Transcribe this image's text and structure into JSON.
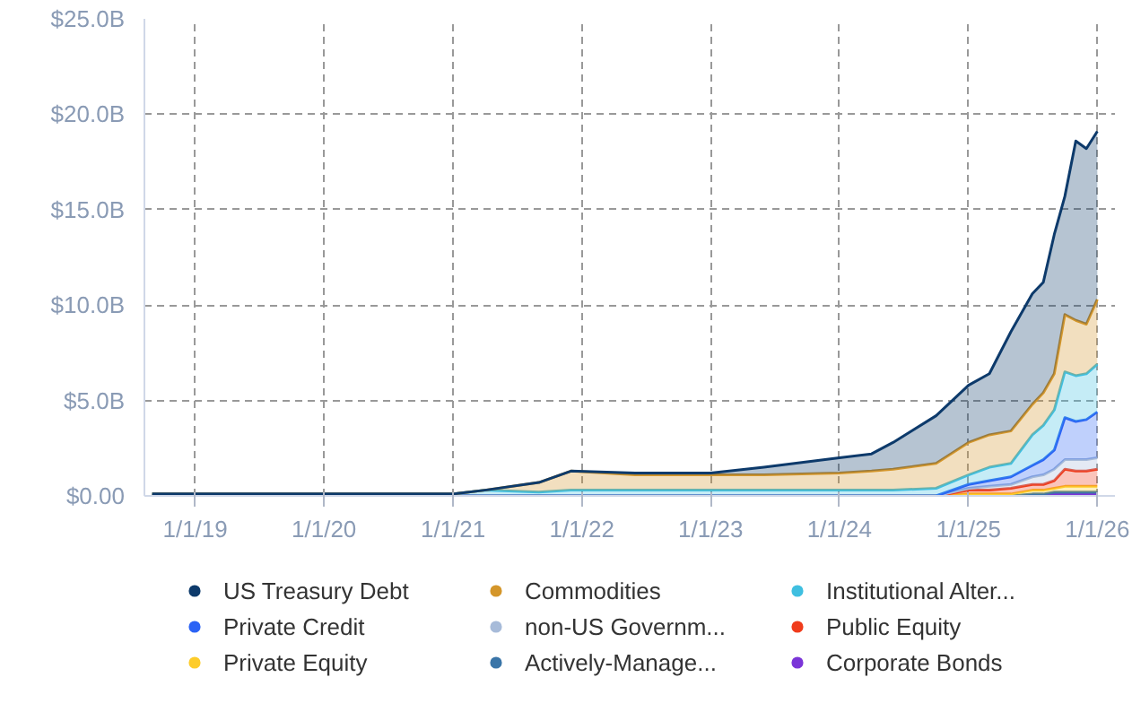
{
  "chart_data": {
    "type": "area",
    "stacked": true,
    "x": [
      "2018-09",
      "2019-06",
      "2020-06",
      "2021-01",
      "2021-04",
      "2021-09",
      "2021-12",
      "2022-06",
      "2023-01",
      "2023-06",
      "2024-01",
      "2024-04",
      "2024-06",
      "2024-10",
      "2025-01",
      "2025-03",
      "2025-05",
      "2025-07",
      "2025-08",
      "2025-09",
      "2025-10",
      "2025-11",
      "2025-12",
      "2026-01"
    ],
    "series": [
      {
        "name": "Corporate Bonds",
        "color": "#7b35d8",
        "values": [
          0,
          0,
          0,
          0,
          0,
          0,
          0,
          0,
          0,
          0,
          0,
          0,
          0,
          0,
          0,
          0,
          0,
          0,
          0,
          0.1,
          0.1,
          0.1,
          0.1,
          0.1
        ]
      },
      {
        "name": "Actively-Manage...",
        "color": "#3a75a8",
        "values": [
          0,
          0,
          0,
          0,
          0,
          0,
          0,
          0,
          0,
          0,
          0,
          0,
          0,
          0,
          0,
          0,
          0,
          0.1,
          0.1,
          0.1,
          0.1,
          0.1,
          0.1,
          0.1
        ]
      },
      {
        "name": "Private Equity",
        "color": "#fdcc2a",
        "values": [
          0,
          0,
          0,
          0,
          0,
          0,
          0,
          0,
          0,
          0,
          0,
          0,
          0,
          0,
          0.1,
          0.1,
          0.1,
          0.2,
          0.2,
          0.2,
          0.3,
          0.3,
          0.3,
          0.3
        ]
      },
      {
        "name": "Public Equity",
        "color": "#f03c1c",
        "values": [
          0,
          0,
          0,
          0,
          0,
          0,
          0,
          0,
          0,
          0,
          0,
          0,
          0,
          0,
          0.2,
          0.2,
          0.3,
          0.3,
          0.3,
          0.4,
          0.9,
          0.8,
          0.8,
          0.9
        ]
      },
      {
        "name": "non-US Governm...",
        "color": "#a7bbd9",
        "values": [
          0,
          0,
          0,
          0,
          0,
          0,
          0,
          0,
          0,
          0,
          0,
          0,
          0,
          0,
          0.1,
          0.2,
          0.2,
          0.4,
          0.5,
          0.6,
          0.5,
          0.6,
          0.6,
          0.6
        ]
      },
      {
        "name": "Private Credit",
        "color": "#2b63f5",
        "values": [
          0,
          0,
          0,
          0,
          0,
          0,
          0,
          0,
          0,
          0,
          0,
          0,
          0,
          0,
          0.2,
          0.3,
          0.4,
          0.6,
          0.8,
          1.0,
          2.2,
          2.0,
          2.1,
          2.4
        ]
      },
      {
        "name": "Institutional Alter...",
        "color": "#3fbfe0",
        "values": [
          0.1,
          0.1,
          0.1,
          0.1,
          0.3,
          0.2,
          0.3,
          0.3,
          0.3,
          0.3,
          0.3,
          0.3,
          0.3,
          0.4,
          0.5,
          0.7,
          0.7,
          1.6,
          1.8,
          2.1,
          2.4,
          2.4,
          2.4,
          2.5
        ]
      },
      {
        "name": "Commodities",
        "color": "#d4962a",
        "values": [
          0,
          0,
          0,
          0,
          0,
          0.5,
          1.0,
          0.8,
          0.8,
          0.8,
          0.9,
          1.0,
          1.1,
          1.3,
          1.7,
          1.7,
          1.7,
          1.6,
          1.7,
          1.9,
          3.0,
          2.9,
          2.6,
          3.4
        ]
      },
      {
        "name": "US Treasury Debt",
        "color": "#0d3a6b",
        "values": [
          0,
          0,
          0,
          0,
          0,
          0,
          0,
          0.1,
          0.1,
          0.4,
          0.8,
          0.9,
          1.4,
          2.5,
          3.0,
          3.2,
          5.2,
          5.8,
          5.8,
          7.3,
          6.2,
          9.4,
          9.2,
          8.8
        ]
      }
    ],
    "ylim": [
      0,
      25
    ],
    "yticks": [
      {
        "value": 0,
        "label": "$0.00"
      },
      {
        "value": 5,
        "label": "$5.0B"
      },
      {
        "value": 10,
        "label": "$10.0B"
      },
      {
        "value": 15,
        "label": "$15.0B"
      },
      {
        "value": 20,
        "label": "$20.0B"
      },
      {
        "value": 25,
        "label": "$25.0B"
      }
    ],
    "xlim": [
      "2018-08-10",
      "2026-02-20"
    ],
    "xticks": [
      {
        "value": "2019-01-01",
        "label": "1/1/19"
      },
      {
        "value": "2020-01-01",
        "label": "1/1/20"
      },
      {
        "value": "2021-01-01",
        "label": "1/1/21"
      },
      {
        "value": "2022-01-01",
        "label": "1/1/22"
      },
      {
        "value": "2023-01-01",
        "label": "1/1/23"
      },
      {
        "value": "2024-01-01",
        "label": "1/1/24"
      },
      {
        "value": "2025-01-01",
        "label": "1/1/25"
      },
      {
        "value": "2026-01-01",
        "label": "1/1/26"
      }
    ],
    "grid": true,
    "legend": "bottom",
    "line_style": "solid"
  }
}
